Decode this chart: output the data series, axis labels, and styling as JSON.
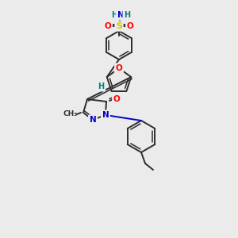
{
  "bg_color": "#ebebeb",
  "bond_color": "#2d2d2d",
  "atom_colors": {
    "O": "#ff0000",
    "N": "#0000cc",
    "S": "#cccc00",
    "H": "#008080",
    "C": "#2d2d2d"
  },
  "figsize": [
    3.0,
    3.0
  ],
  "dpi": 100
}
